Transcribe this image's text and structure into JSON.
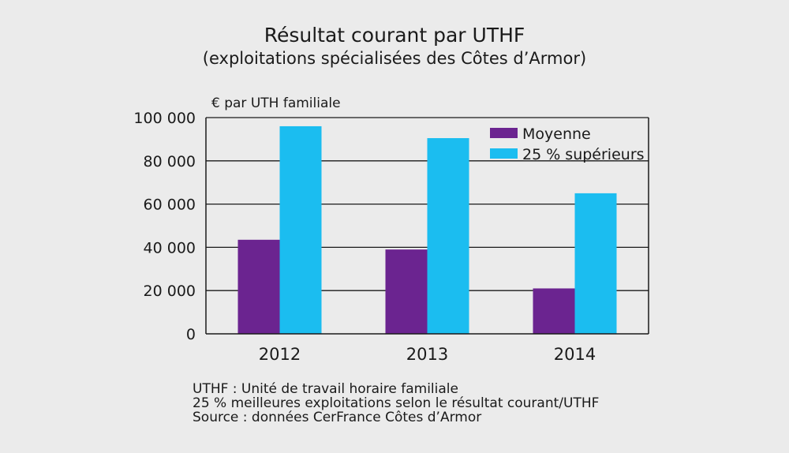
{
  "title": "Résultat courant par UTHF",
  "subtitle": "(exploitations spécialisées des Côtes d’Armor)",
  "notes": [
    "UTHF : Unité de travail horaire familiale",
    "25 % meilleures exploitations selon le résultat courant/UTHF",
    "Source : données CerFrance Côtes d’Armor"
  ],
  "colors": {
    "moyenne": "#6b2490",
    "superieurs": "#1bbdf0",
    "axis": "#1a1a1a",
    "background": "#ebebeb"
  },
  "chart_data": {
    "type": "bar",
    "title": "Résultat courant par UTHF",
    "subtitle": "(exploitations spécialisées des Côtes d’Armor)",
    "ylabel": "€ par UTH familiale",
    "xlabel": "",
    "categories": [
      "2012",
      "2013",
      "2014"
    ],
    "series": [
      {
        "name": "Moyenne",
        "values": [
          43500,
          39000,
          21000
        ]
      },
      {
        "name": "25 % supérieurs",
        "values": [
          96000,
          90500,
          65000
        ]
      }
    ],
    "ylim": [
      0,
      100000
    ],
    "yticks": [
      0,
      20000,
      40000,
      60000,
      80000,
      100000
    ],
    "ytick_labels": [
      "0",
      "20 000",
      "40 000",
      "60 000",
      "80 000",
      "100 000"
    ],
    "grid": true,
    "legend": "top-right"
  }
}
